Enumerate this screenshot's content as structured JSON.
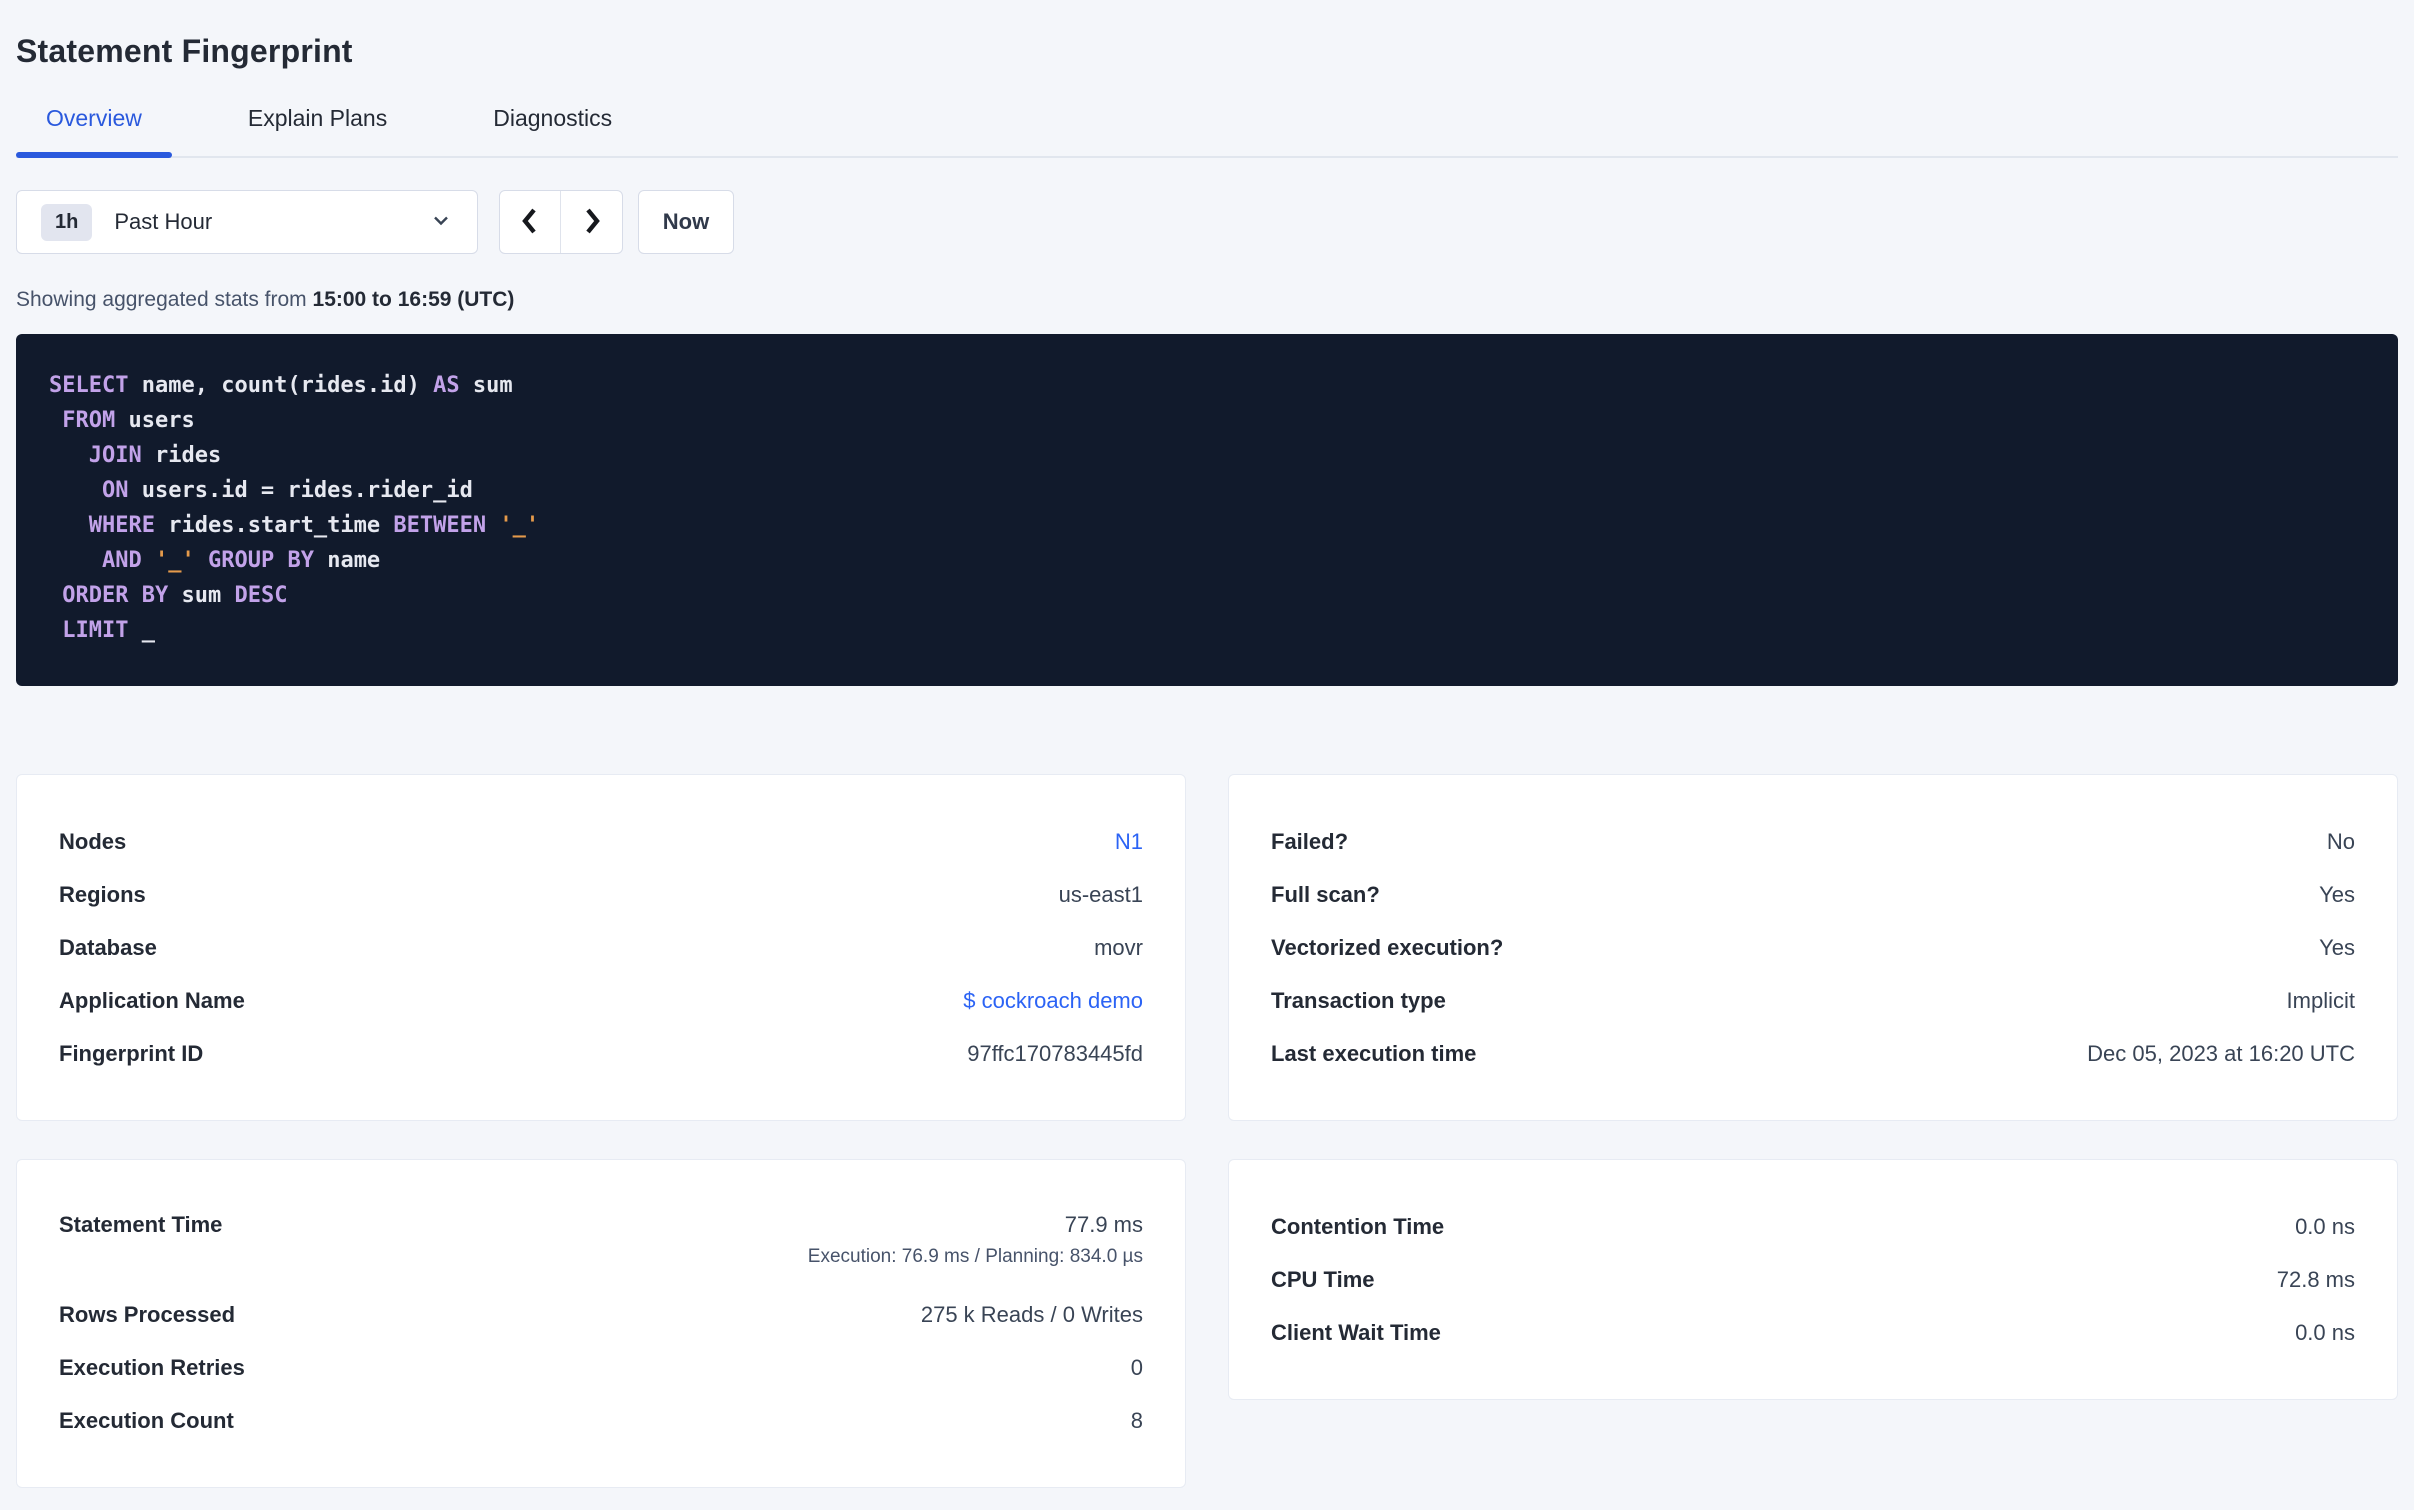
{
  "page": {
    "title": "Statement Fingerprint"
  },
  "colors": {
    "accent_blue": "#2a59dd",
    "link_blue": "#2b63f5",
    "page_background": "#f4f6fa",
    "sql_background": "#111a2c",
    "sql_keyword": "#c2a2e9",
    "sql_plain": "#e6e8f0",
    "sql_string": "#e59a4b"
  },
  "tabs": [
    {
      "label": "Overview",
      "active": true
    },
    {
      "label": "Explain Plans",
      "active": false
    },
    {
      "label": "Diagnostics",
      "active": false
    }
  ],
  "time_picker": {
    "badge": "1h",
    "selected": "Past Hour",
    "now_label": "Now",
    "icons": [
      "chevron-down-icon",
      "chevron-left-icon",
      "chevron-right-icon"
    ]
  },
  "caption": {
    "prefix": "Showing aggregated stats from ",
    "bold_range": "15:00 to 16:59 (UTC)"
  },
  "sql": {
    "lines": [
      [
        {
          "t": "SELECT",
          "c": "kw"
        },
        {
          "t": " name, count(rides.id) ",
          "c": "pl"
        },
        {
          "t": "AS",
          "c": "kw"
        },
        {
          "t": " sum",
          "c": "pl"
        }
      ],
      [
        {
          "t": " ",
          "c": "pl"
        },
        {
          "t": "FROM",
          "c": "kw"
        },
        {
          "t": " users",
          "c": "pl"
        }
      ],
      [
        {
          "t": "   ",
          "c": "pl"
        },
        {
          "t": "JOIN",
          "c": "kw"
        },
        {
          "t": " rides",
          "c": "pl"
        }
      ],
      [
        {
          "t": "    ",
          "c": "pl"
        },
        {
          "t": "ON",
          "c": "kw"
        },
        {
          "t": " users.id = rides.rider_id",
          "c": "pl"
        }
      ],
      [
        {
          "t": "   ",
          "c": "pl"
        },
        {
          "t": "WHERE",
          "c": "kw"
        },
        {
          "t": " rides.start_time ",
          "c": "pl"
        },
        {
          "t": "BETWEEN",
          "c": "kw"
        },
        {
          "t": " ",
          "c": "pl"
        },
        {
          "t": "'_'",
          "c": "str"
        }
      ],
      [
        {
          "t": "    ",
          "c": "pl"
        },
        {
          "t": "AND",
          "c": "kw"
        },
        {
          "t": " ",
          "c": "pl"
        },
        {
          "t": "'_'",
          "c": "str"
        },
        {
          "t": " ",
          "c": "pl"
        },
        {
          "t": "GROUP BY",
          "c": "kw"
        },
        {
          "t": " name",
          "c": "pl"
        }
      ],
      [
        {
          "t": " ",
          "c": "pl"
        },
        {
          "t": "ORDER BY",
          "c": "kw"
        },
        {
          "t": " sum ",
          "c": "pl"
        },
        {
          "t": "DESC",
          "c": "kw"
        }
      ],
      [
        {
          "t": " ",
          "c": "pl"
        },
        {
          "t": "LIMIT",
          "c": "kw"
        },
        {
          "t": " _",
          "c": "pl"
        }
      ]
    ]
  },
  "cards": {
    "details_left": {
      "rows": [
        {
          "label": "Nodes",
          "value": "N1",
          "link": true
        },
        {
          "label": "Regions",
          "value": "us-east1"
        },
        {
          "label": "Database",
          "value": "movr"
        },
        {
          "label": "Application Name",
          "value": "$ cockroach demo",
          "link": true
        },
        {
          "label": "Fingerprint ID",
          "value": "97ffc170783445fd"
        }
      ]
    },
    "details_right": {
      "rows": [
        {
          "label": "Failed?",
          "value": "No"
        },
        {
          "label": "Full scan?",
          "value": "Yes"
        },
        {
          "label": "Vectorized execution?",
          "value": "Yes"
        },
        {
          "label": "Transaction type",
          "value": "Implicit"
        },
        {
          "label": "Last execution time",
          "value": "Dec 05, 2023 at 16:20 UTC"
        }
      ]
    },
    "stats_left": {
      "rows": [
        {
          "label": "Statement Time",
          "value": "77.9 ms",
          "sub": "Execution: 76.9 ms / Planning: 834.0 µs"
        },
        {
          "label": "Rows Processed",
          "value": "275 k Reads / 0 Writes"
        },
        {
          "label": "Execution Retries",
          "value": "0"
        },
        {
          "label": "Execution Count",
          "value": "8"
        }
      ]
    },
    "stats_right": {
      "rows": [
        {
          "label": "Contention Time",
          "value": "0.0 ns"
        },
        {
          "label": "CPU Time",
          "value": "72.8 ms"
        },
        {
          "label": "Client Wait Time",
          "value": "0.0 ns"
        }
      ]
    }
  }
}
